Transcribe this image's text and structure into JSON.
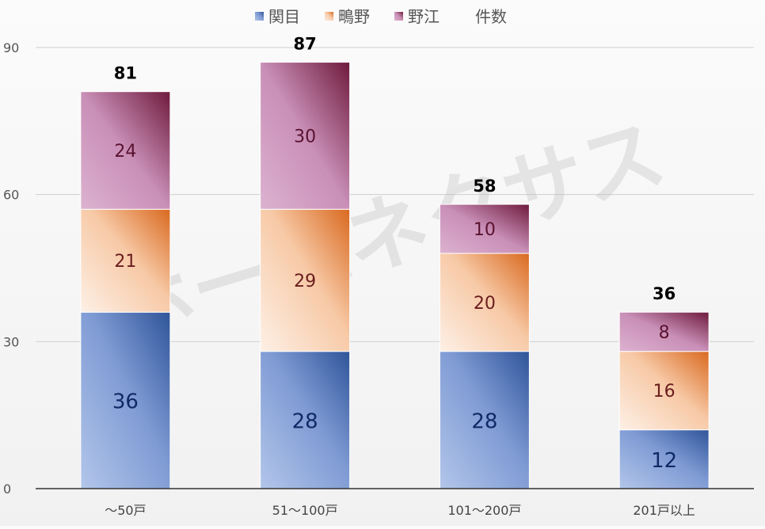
{
  "chart_data": {
    "type": "bar",
    "stacked": true,
    "categories": [
      "～50戸",
      "51～100戸",
      "101～200戸",
      "201戸以上"
    ],
    "series": [
      {
        "name": "関目",
        "values": [
          36,
          28,
          28,
          12
        ],
        "color": "#3a5fa8",
        "label_color": "#0f2a66"
      },
      {
        "name": "鴫野",
        "values": [
          21,
          29,
          20,
          16
        ],
        "color": "#e8813a",
        "label_color": "#6a1d1d"
      },
      {
        "name": "野江",
        "values": [
          24,
          30,
          10,
          8
        ],
        "color": "#a4668f",
        "label_color": "#5a1230"
      }
    ],
    "totals": {
      "name": "件数",
      "values": [
        81,
        87,
        58,
        36
      ]
    },
    "ylim": [
      0,
      90
    ],
    "yticks": [
      0,
      30,
      60,
      90
    ],
    "grid": true,
    "legend_position": "top",
    "watermark": "ホームネクサス",
    "title": "",
    "xlabel": "",
    "ylabel": ""
  }
}
